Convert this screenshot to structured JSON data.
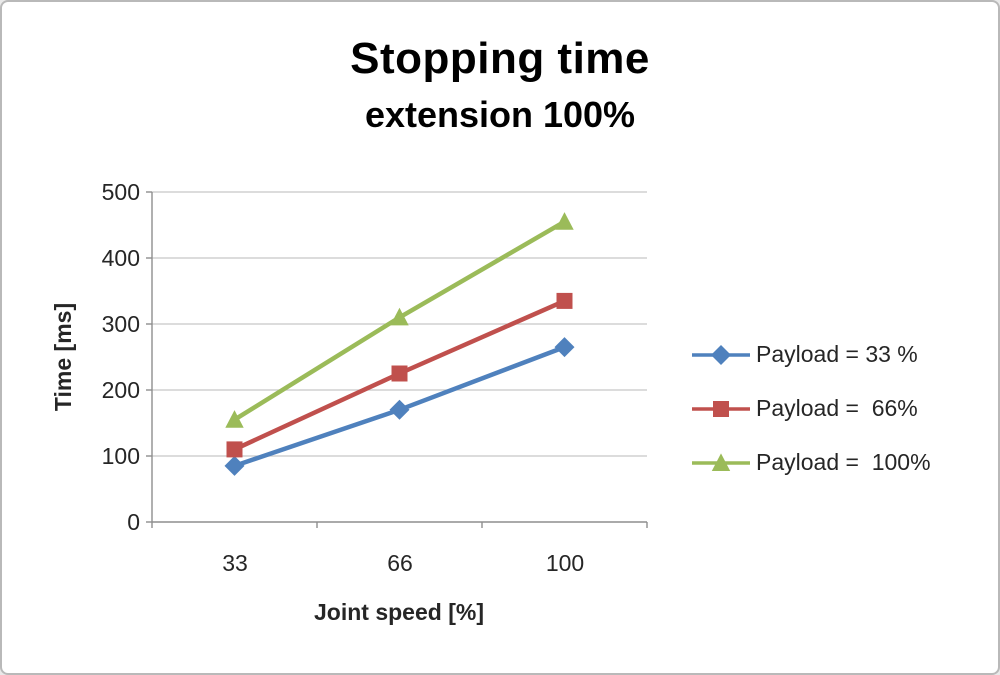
{
  "chart_data": {
    "type": "line",
    "title": "Stopping time",
    "subtitle": "extension 100%",
    "xlabel": "Joint speed [%]",
    "ylabel": "Time [ms]",
    "categories": [
      "33",
      "66",
      "100"
    ],
    "ylim": [
      0,
      500
    ],
    "yticks": [
      "0",
      "100",
      "200",
      "300",
      "400",
      "500"
    ],
    "grid": true,
    "legend_position": "right",
    "series": [
      {
        "name": "Payload = 33 %",
        "color": "#4F81BD",
        "marker": "diamond",
        "values": [
          85,
          170,
          265
        ]
      },
      {
        "name": "Payload =  66%",
        "color": "#C0504D",
        "marker": "square",
        "values": [
          110,
          225,
          335
        ]
      },
      {
        "name": "Payload =  100%",
        "color": "#9BBB59",
        "marker": "triangle",
        "values": [
          155,
          310,
          455
        ]
      }
    ]
  }
}
